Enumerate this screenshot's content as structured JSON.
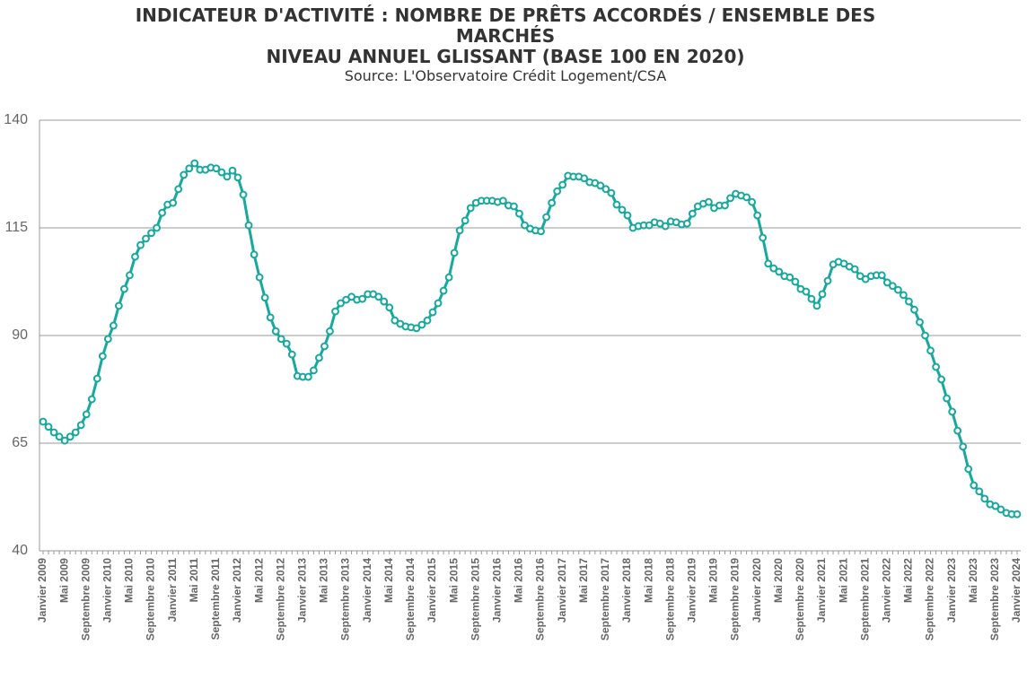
{
  "chart_data": {
    "type": "line",
    "title": "INDICATEUR D'ACTIVITÉ : NOMBRE DE PRÊTS ACCORDÉS / ENSEMBLE DES MARCHÉS",
    "subtitle": "NIVEAU ANNUEL GLISSANT (BASE 100 EN 2020)",
    "source": "Source: L'Observatoire Crédit Logement/CSA",
    "categories": [
      "Janvier 2009",
      null,
      null,
      null,
      "Mai 2009",
      null,
      null,
      null,
      "Septembre 2009",
      null,
      null,
      null,
      "Janvier 2010",
      null,
      null,
      null,
      "Mai 2010",
      null,
      null,
      null,
      "Septembre 2010",
      null,
      null,
      null,
      "Janvier 2011",
      null,
      null,
      null,
      "Mai 2011",
      null,
      null,
      null,
      "Septembre 2011",
      null,
      null,
      null,
      "Janvier 2012",
      null,
      null,
      null,
      "Mai 2012",
      null,
      null,
      null,
      "Septembre 2012",
      null,
      null,
      null,
      "Janvier 2013",
      null,
      null,
      null,
      "Mai 2013",
      null,
      null,
      null,
      "Septembre 2013",
      null,
      null,
      null,
      "Janvier 2014",
      null,
      null,
      null,
      "Mai 2014",
      null,
      null,
      null,
      "Septembre 2014",
      null,
      null,
      null,
      "Janvier 2015",
      null,
      null,
      null,
      "Mai 2015",
      null,
      null,
      null,
      "Septembre 2015",
      null,
      null,
      null,
      "Janvier 2016",
      null,
      null,
      null,
      "Mai 2016",
      null,
      null,
      null,
      "Septembre 2016",
      null,
      null,
      null,
      "Janvier 2017",
      null,
      null,
      null,
      "Mai 2017",
      null,
      null,
      null,
      "Septembre 2017",
      null,
      null,
      null,
      "Janvier 2018",
      null,
      null,
      null,
      "Mai 2018",
      null,
      null,
      null,
      "Septembre 2018",
      null,
      null,
      null,
      "Janvier 2019",
      null,
      null,
      null,
      "Mai 2019",
      null,
      null,
      null,
      "Septembre 2019",
      null,
      null,
      null,
      "Janvier 2020",
      null,
      null,
      null,
      "Mai 2020",
      null,
      null,
      null,
      "Septembre 2020",
      null,
      null,
      null,
      "Janvier 2021",
      null,
      null,
      null,
      "Mai 2021",
      null,
      null,
      null,
      "Septembre 2021",
      null,
      null,
      null,
      "Janvier 2022",
      null,
      null,
      null,
      "Mai 2022",
      null,
      null,
      null,
      "Septembre 2022",
      null,
      null,
      null,
      "Janvier 2023",
      null,
      null,
      null,
      "Mai 2023",
      null,
      null,
      null,
      "Septembre 2023",
      null,
      null,
      null,
      "Janvier 2024"
    ],
    "series": [
      {
        "color": "#17a89e",
        "values": [
          70,
          68.8,
          67.5,
          66.5,
          65.6,
          66.5,
          67.5,
          69.2,
          71.7,
          75.2,
          80,
          85.2,
          89.2,
          92.3,
          96.9,
          100.8,
          104,
          108.3,
          111,
          112.5,
          113.8,
          115,
          118.5,
          120.4,
          120.8,
          124,
          127.3,
          128.8,
          130,
          128.5,
          128.5,
          129,
          128.8,
          127.9,
          126.9,
          128.3,
          126.7,
          122.7,
          115.6,
          108.8,
          103.5,
          98.8,
          94.2,
          91,
          89.2,
          88.1,
          85.6,
          80.6,
          80.4,
          80.4,
          81.9,
          84.8,
          87.5,
          91,
          95.6,
          97.5,
          98.3,
          99,
          98.3,
          98.5,
          99.6,
          99.6,
          99,
          97.9,
          96.5,
          93.5,
          92.7,
          92.1,
          91.9,
          91.7,
          92.5,
          93.5,
          95.4,
          97.5,
          100.4,
          103.5,
          109.2,
          114.4,
          116.7,
          119.6,
          120.8,
          121.3,
          121.3,
          121.3,
          121,
          121.3,
          120.2,
          120,
          118.3,
          115.6,
          114.8,
          114.4,
          114.2,
          117.5,
          120.8,
          123.5,
          125,
          127.1,
          126.9,
          126.9,
          126.5,
          125.6,
          125.4,
          124.8,
          124,
          123.1,
          120.4,
          119.2,
          117.9,
          115,
          115.4,
          115.6,
          115.6,
          116.3,
          116,
          115.4,
          116.5,
          116.3,
          115.8,
          116,
          118.3,
          120,
          120.6,
          121,
          119.6,
          120.2,
          120.2,
          121.9,
          122.9,
          122.5,
          122.1,
          121,
          117.9,
          112.7,
          106.7,
          105.6,
          104.8,
          103.8,
          103.5,
          102.5,
          100.8,
          100.2,
          98.5,
          96.9,
          99.6,
          102.7,
          106.5,
          107.1,
          106.7,
          106,
          105.4,
          103.8,
          103.1,
          103.8,
          104,
          104,
          102.3,
          101.5,
          100.6,
          99.4,
          97.9,
          96,
          93.1,
          90,
          86.5,
          82.7,
          79.8,
          75.4,
          72.3,
          67.9,
          64.2,
          59,
          55.2,
          53.8,
          52.1,
          50.8,
          50.4,
          49.6,
          48.8,
          48.5,
          48.5
        ]
      }
    ],
    "ylim": [
      40,
      140
    ],
    "yticks": [
      40,
      65,
      90,
      115,
      140
    ],
    "grid": true
  }
}
